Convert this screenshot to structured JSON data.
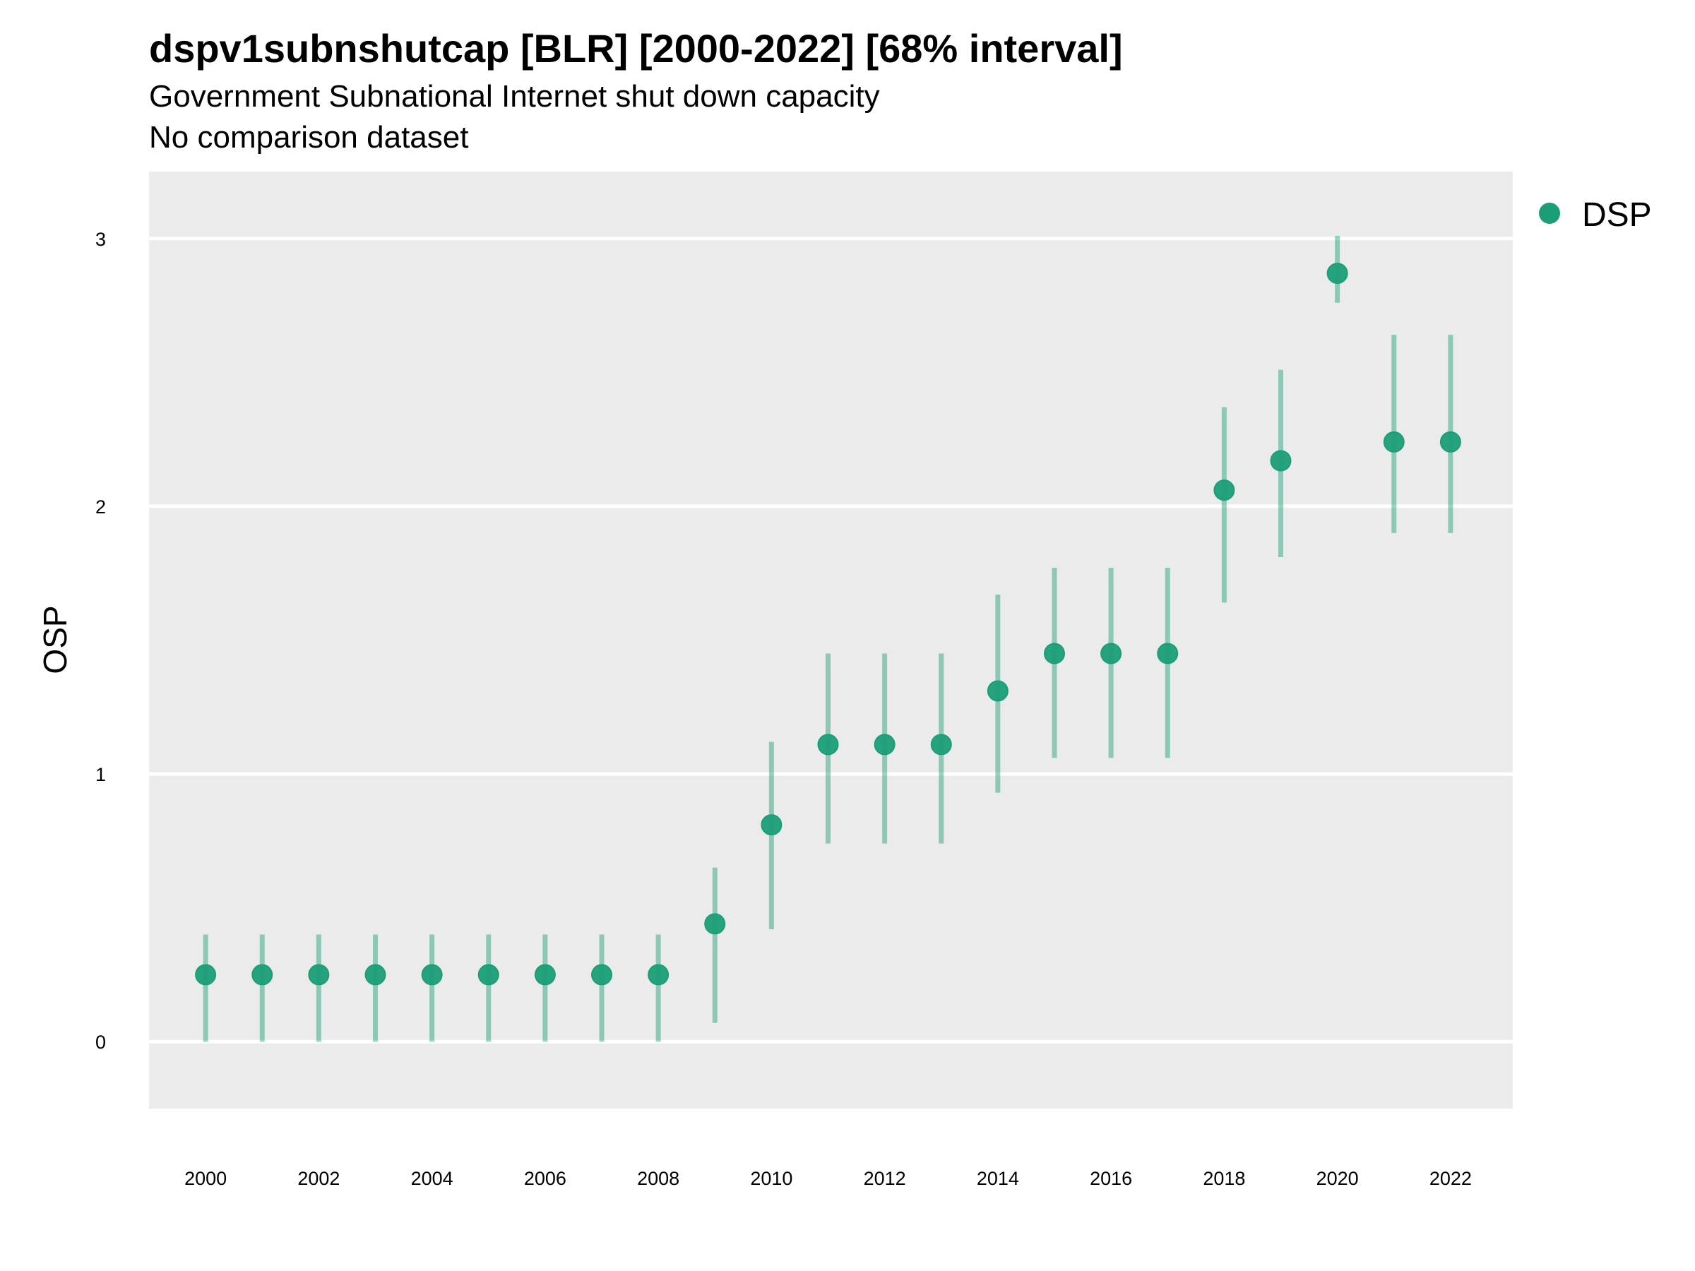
{
  "chart_data": {
    "type": "scatter",
    "title": "dspv1subnshutcap [BLR] [2000-2022] [68% interval]",
    "subtitle": "Government Subnational Internet shut down capacity",
    "caption": "No comparison dataset",
    "xlabel": "",
    "ylabel": "OSP",
    "x_ticks": [
      "2000",
      "2002",
      "2004",
      "2006",
      "2008",
      "2010",
      "2012",
      "2014",
      "2016",
      "2018",
      "2020",
      "2022"
    ],
    "y_ticks": [
      "0",
      "1",
      "2",
      "3"
    ],
    "xlim": [
      1999,
      2023.1
    ],
    "ylim": [
      -0.25,
      3.25
    ],
    "grid": true,
    "legend_position": "top-right",
    "series": [
      {
        "name": "DSP",
        "color": "#1b9e77",
        "x": [
          2000,
          2001,
          2002,
          2003,
          2004,
          2005,
          2006,
          2007,
          2008,
          2009,
          2010,
          2011,
          2012,
          2013,
          2014,
          2015,
          2016,
          2017,
          2018,
          2019,
          2020,
          2021,
          2022
        ],
        "y": [
          0.25,
          0.25,
          0.25,
          0.25,
          0.25,
          0.25,
          0.25,
          0.25,
          0.25,
          0.44,
          0.81,
          1.11,
          1.11,
          1.11,
          1.31,
          1.45,
          1.45,
          1.45,
          2.06,
          2.17,
          2.87,
          2.24,
          2.24
        ],
        "lower": [
          0.0,
          0.0,
          0.0,
          0.0,
          0.0,
          0.0,
          0.0,
          0.0,
          0.0,
          0.07,
          0.42,
          0.74,
          0.74,
          0.74,
          0.93,
          1.06,
          1.06,
          1.06,
          1.64,
          1.81,
          2.76,
          1.9,
          1.9
        ],
        "upper": [
          0.4,
          0.4,
          0.4,
          0.4,
          0.4,
          0.4,
          0.4,
          0.4,
          0.4,
          0.65,
          1.12,
          1.45,
          1.45,
          1.45,
          1.67,
          1.77,
          1.77,
          1.77,
          2.37,
          2.51,
          3.01,
          2.64,
          2.64
        ]
      }
    ]
  }
}
